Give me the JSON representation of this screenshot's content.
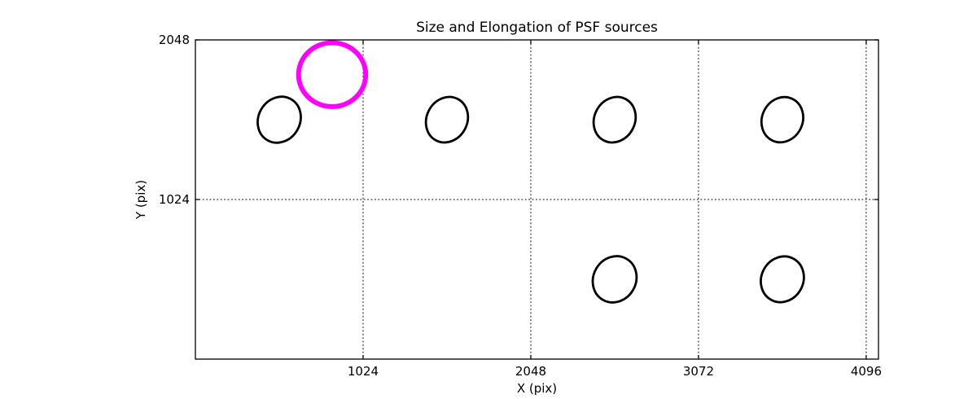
{
  "figure": {
    "background": "#ffffff"
  },
  "chart_data": {
    "type": "scatter",
    "title": "Size and Elongation of PSF sources",
    "xlabel": "X (pix)",
    "ylabel": "Y (pix)",
    "xlim": [
      0,
      4171
    ],
    "ylim": [
      0,
      2048
    ],
    "x_ticks": [
      1024,
      2048,
      3072,
      4096
    ],
    "y_ticks": [
      1024,
      2048
    ],
    "grid": {
      "enabled": true,
      "style": "dotted",
      "color": "#000000"
    },
    "axis_color": "#000000",
    "frame_color": "#000000",
    "psf_sources": [
      {
        "x": 512,
        "y": 1536,
        "semi_major": 152,
        "semi_minor": 127,
        "angle_deg": 30
      },
      {
        "x": 1536,
        "y": 1536,
        "semi_major": 150,
        "semi_minor": 124,
        "angle_deg": 28
      },
      {
        "x": 2560,
        "y": 1536,
        "semi_major": 150,
        "semi_minor": 124,
        "angle_deg": 28
      },
      {
        "x": 3584,
        "y": 1536,
        "semi_major": 148,
        "semi_minor": 124,
        "angle_deg": 26
      },
      {
        "x": 2560,
        "y": 512,
        "semi_major": 152,
        "semi_minor": 130,
        "angle_deg": 30
      },
      {
        "x": 3584,
        "y": 512,
        "semi_major": 150,
        "semi_minor": 128,
        "angle_deg": 28
      }
    ],
    "psf_style": {
      "stroke": "#000000",
      "stroke_width": 2.8
    },
    "reference_circle": {
      "x": 835,
      "y": 1825,
      "radius": 205,
      "stroke": "#ff00ff",
      "stroke_width": 6
    }
  }
}
